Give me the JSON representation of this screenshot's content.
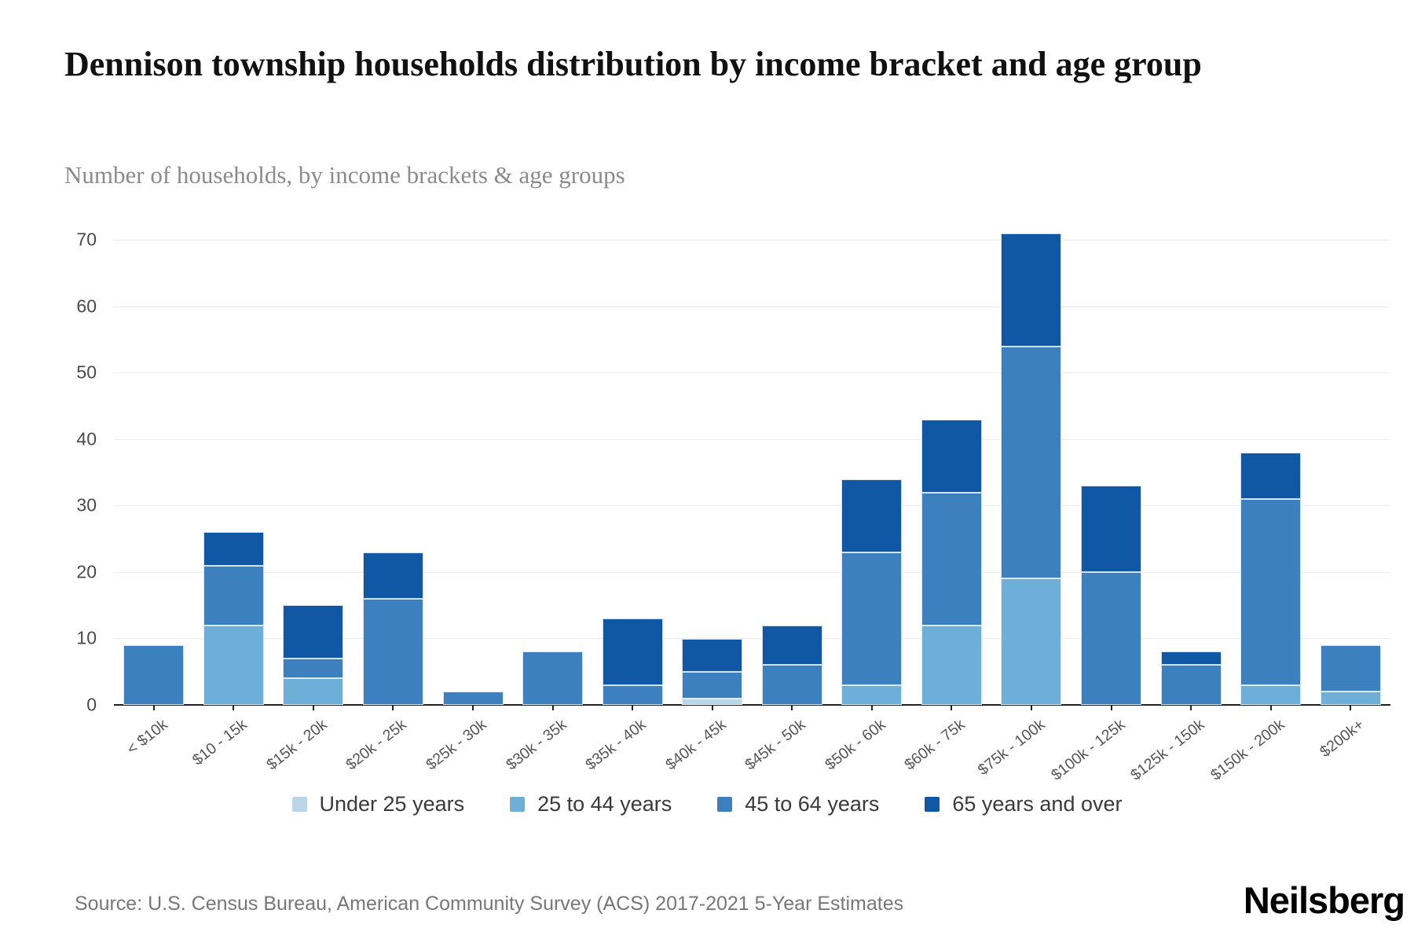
{
  "header": {
    "title": "Dennison township households distribution by income bracket and age group",
    "subtitle": "Number of households, by income brackets & age groups"
  },
  "footer": {
    "source": "Source: U.S. Census Bureau, American Community Survey (ACS) 2017-2021 5-Year Estimates",
    "brand": "Neilsberg"
  },
  "chart_data": {
    "type": "bar",
    "stacked": true,
    "title": "Dennison township households distribution by income bracket and age group",
    "xlabel": "",
    "ylabel": "Number of households",
    "ylim": [
      0,
      70
    ],
    "ytick_step": 10,
    "grid": true,
    "legend_position": "bottom",
    "categories": [
      "< $10k",
      "$10 - 15k",
      "$15k - 20k",
      "$20k - 25k",
      "$25k - 30k",
      "$30k - 35k",
      "$35k - 40k",
      "$40k - 45k",
      "$45k - 50k",
      "$50k - 60k",
      "$60k - 75k",
      "$75k - 100k",
      "$100k - 125k",
      "$125k - 150k",
      "$150k - 200k",
      "$200k+"
    ],
    "series": [
      {
        "name": "Under 25 years",
        "color": "#b9d5ea",
        "values": [
          0,
          0,
          0,
          0,
          0,
          0,
          0,
          1,
          0,
          0,
          0,
          0,
          0,
          0,
          0,
          0
        ]
      },
      {
        "name": "25 to 44 years",
        "color": "#6dafd9",
        "values": [
          0,
          12,
          4,
          0,
          0,
          0,
          0,
          0,
          0,
          3,
          12,
          19,
          0,
          0,
          3,
          2
        ]
      },
      {
        "name": "45 to 64 years",
        "color": "#3d80bf",
        "values": [
          9,
          9,
          3,
          16,
          2,
          8,
          3,
          4,
          6,
          20,
          20,
          35,
          20,
          6,
          28,
          7
        ]
      },
      {
        "name": "65 years and over",
        "color": "#1057a5",
        "values": [
          0,
          5,
          8,
          7,
          0,
          0,
          10,
          5,
          6,
          11,
          11,
          17,
          13,
          2,
          7,
          0
        ]
      }
    ],
    "totals": [
      9,
      26,
      15,
      23,
      2,
      8,
      13,
      10,
      12,
      34,
      43,
      71,
      33,
      8,
      38,
      9
    ]
  }
}
